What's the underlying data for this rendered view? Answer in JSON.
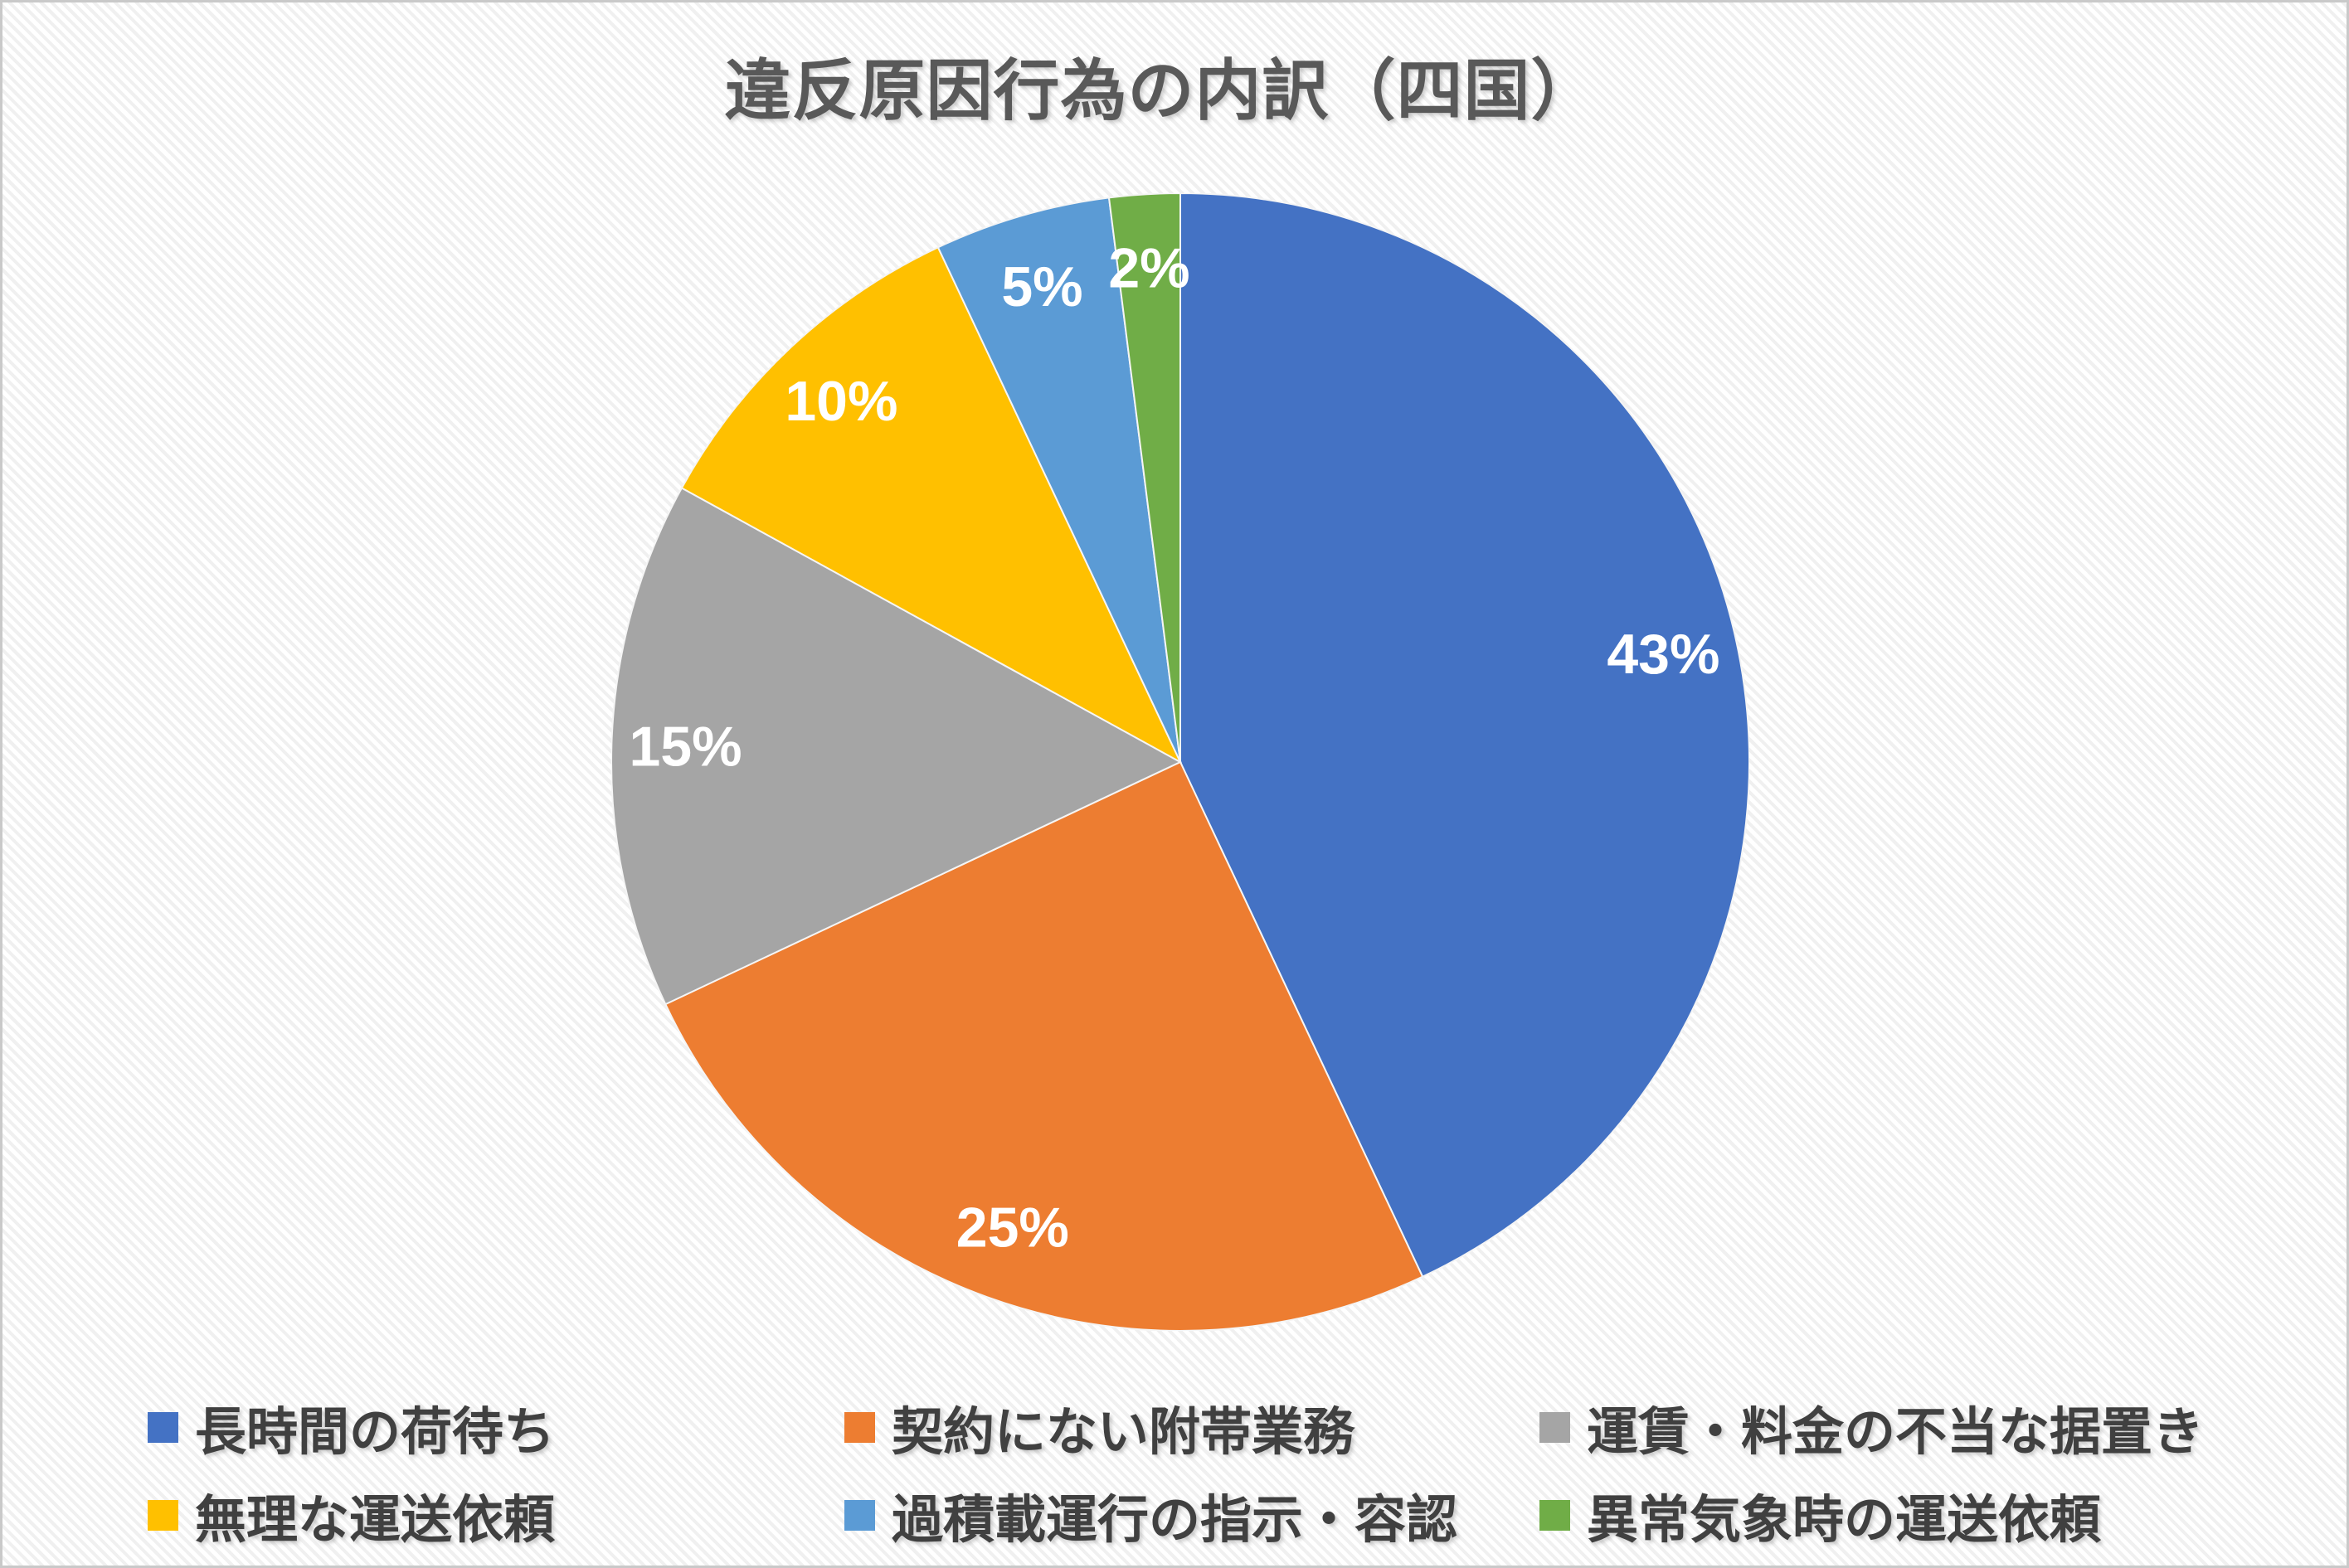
{
  "chart_data": {
    "type": "pie",
    "title": "違反原因行為の内訳（四国）",
    "unit": "percent",
    "start_angle_deg": 0,
    "direction": "clockwise",
    "legend_position": "bottom",
    "grid": false,
    "slices": [
      {
        "label": "長時間の荷待ち",
        "value": 43,
        "display": "43%",
        "color": "#4472C4"
      },
      {
        "label": "契約にない附帯業務",
        "value": 25,
        "display": "25%",
        "color": "#ED7D31"
      },
      {
        "label": "運賃・料金の不当な据置き",
        "value": 15,
        "display": "15%",
        "color": "#A5A5A5"
      },
      {
        "label": "無理な運送依頼",
        "value": 10,
        "display": "10%",
        "color": "#FFC000"
      },
      {
        "label": "過積載運行の指示・容認",
        "value": 5,
        "display": "5%",
        "color": "#5B9BD5"
      },
      {
        "label": "異常気象時の運送依頼",
        "value": 2,
        "display": "2%",
        "color": "#70AD47"
      }
    ]
  },
  "styles": {
    "title_color": "#595959",
    "legend_text_color": "#404040",
    "slice_label_color": "#FFFFFF",
    "background_color": "#FFFFFF",
    "stripe_color": "#F0F0F0",
    "frame_border_color": "#C9C9C9"
  }
}
